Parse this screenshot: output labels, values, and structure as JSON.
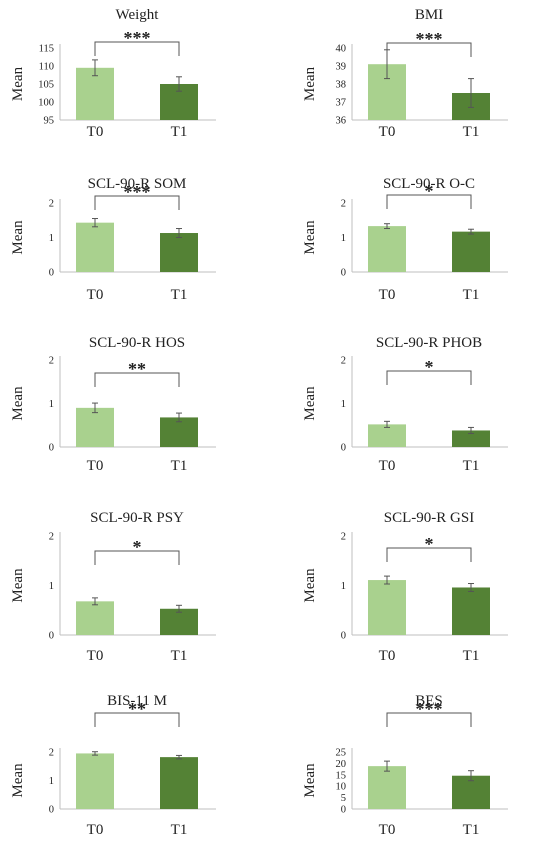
{
  "colors": {
    "t0": "#a9d18e",
    "t1": "#548235",
    "axis": "#bfbfbf",
    "text": "#222222",
    "bracket": "#555555"
  },
  "chart_data": [
    {
      "type": "bar",
      "title": "Weight",
      "ylabel": "Mean",
      "categories": [
        "T0",
        "T1"
      ],
      "values": [
        109.5,
        105.0
      ],
      "errors": [
        2.2,
        2.0
      ],
      "ylim": [
        95,
        115
      ],
      "yticks": [
        95,
        100,
        105,
        110,
        115
      ],
      "significance": "***"
    },
    {
      "type": "bar",
      "title": "BMI",
      "ylabel": "Mean",
      "categories": [
        "T0",
        "T1"
      ],
      "values": [
        39.1,
        37.5
      ],
      "errors": [
        0.8,
        0.8
      ],
      "ylim": [
        36,
        40
      ],
      "yticks": [
        36,
        37,
        38,
        39,
        40
      ],
      "significance": "***"
    },
    {
      "type": "bar",
      "title": "SCL-90-R SOM",
      "ylabel": "Mean",
      "categories": [
        "T0",
        "T1"
      ],
      "values": [
        1.43,
        1.13
      ],
      "errors": [
        0.12,
        0.13
      ],
      "ylim": [
        0,
        2
      ],
      "yticks": [
        0,
        1,
        2
      ],
      "significance": "***"
    },
    {
      "type": "bar",
      "title": "SCL-90-R O-C",
      "ylabel": "Mean",
      "categories": [
        "T0",
        "T1"
      ],
      "values": [
        1.33,
        1.17
      ],
      "errors": [
        0.07,
        0.07
      ],
      "ylim": [
        0,
        2
      ],
      "yticks": [
        0,
        1,
        2
      ],
      "significance": "*"
    },
    {
      "type": "bar",
      "title": "SCL-90-R HOS",
      "ylabel": "Mean",
      "categories": [
        "T0",
        "T1"
      ],
      "values": [
        0.9,
        0.68
      ],
      "errors": [
        0.11,
        0.1
      ],
      "ylim": [
        0,
        2
      ],
      "yticks": [
        0,
        1,
        2
      ],
      "significance": "**"
    },
    {
      "type": "bar",
      "title": "SCL-90-R PHOB",
      "ylabel": "Mean",
      "categories": [
        "T0",
        "T1"
      ],
      "values": [
        0.52,
        0.38
      ],
      "errors": [
        0.07,
        0.07
      ],
      "ylim": [
        0,
        2
      ],
      "yticks": [
        0,
        1,
        2
      ],
      "significance": "*"
    },
    {
      "type": "bar",
      "title": "SCL-90-R PSY",
      "ylabel": "Mean",
      "categories": [
        "T0",
        "T1"
      ],
      "values": [
        0.68,
        0.53
      ],
      "errors": [
        0.07,
        0.07
      ],
      "ylim": [
        0,
        2
      ],
      "yticks": [
        0,
        1,
        2
      ],
      "significance": "*"
    },
    {
      "type": "bar",
      "title": "SCL-90-R GSI",
      "ylabel": "Mean",
      "categories": [
        "T0",
        "T1"
      ],
      "values": [
        1.11,
        0.96
      ],
      "errors": [
        0.08,
        0.08
      ],
      "ylim": [
        0,
        2
      ],
      "yticks": [
        0,
        1,
        2
      ],
      "significance": "*"
    },
    {
      "type": "bar",
      "title": "BIS-11 M",
      "ylabel": "Mean",
      "categories": [
        "T0",
        "T1"
      ],
      "values": [
        1.95,
        1.82
      ],
      "errors": [
        0.06,
        0.06
      ],
      "ylim": [
        0,
        2
      ],
      "yticks": [
        0,
        1,
        2
      ],
      "significance": "**"
    },
    {
      "type": "bar",
      "title": "BES",
      "ylabel": "Mean",
      "categories": [
        "T0",
        "T1"
      ],
      "values": [
        18.8,
        14.6
      ],
      "errors": [
        2.2,
        2.2
      ],
      "ylim": [
        0,
        25
      ],
      "yticks": [
        0,
        5,
        10,
        15,
        20,
        25
      ],
      "significance": "***"
    }
  ]
}
